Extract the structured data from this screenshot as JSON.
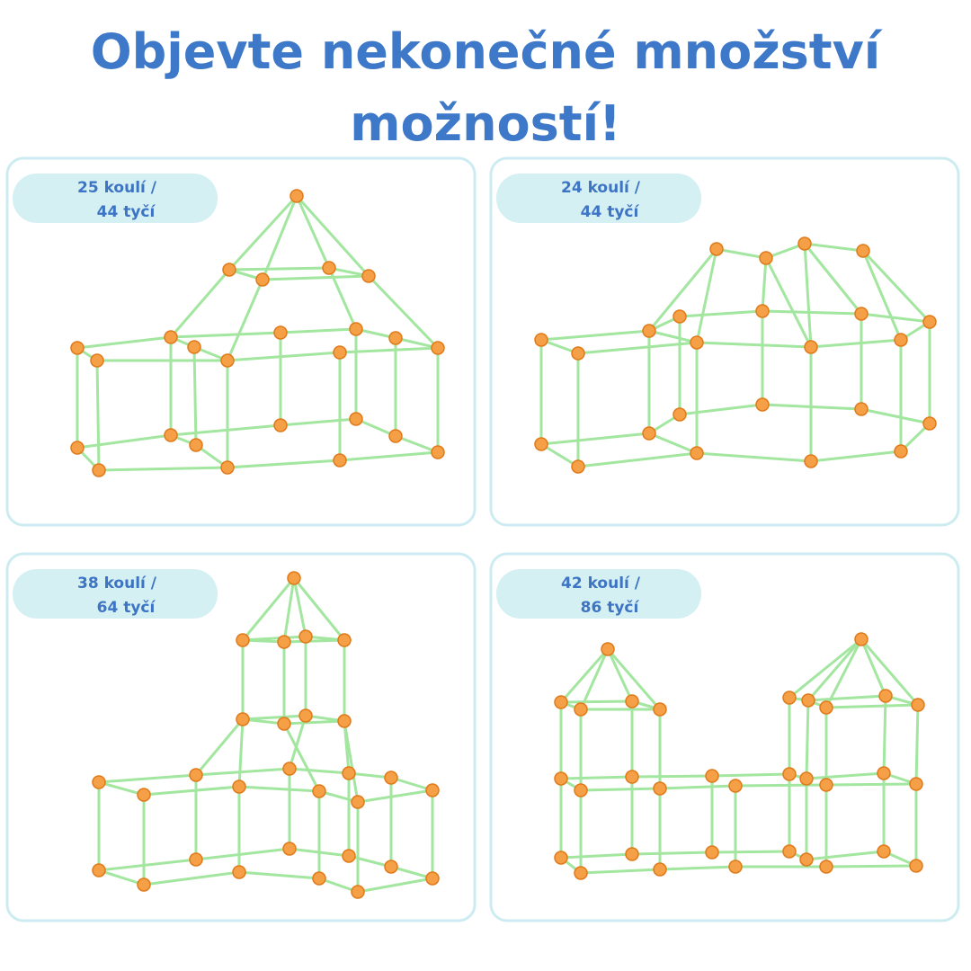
{
  "title": [
    "Objevte nekonečné množství",
    "možností!"
  ],
  "cards": [
    {
      "label": [
        "25 koulí /",
        "44 tyčí"
      ]
    },
    {
      "label": [
        "24 koulí /",
        "44 tyčí"
      ]
    },
    {
      "label": [
        "38 koulí /",
        "64 tyčí"
      ]
    },
    {
      "label": [
        "42 koulí /",
        "86 tyčí"
      ]
    }
  ]
}
